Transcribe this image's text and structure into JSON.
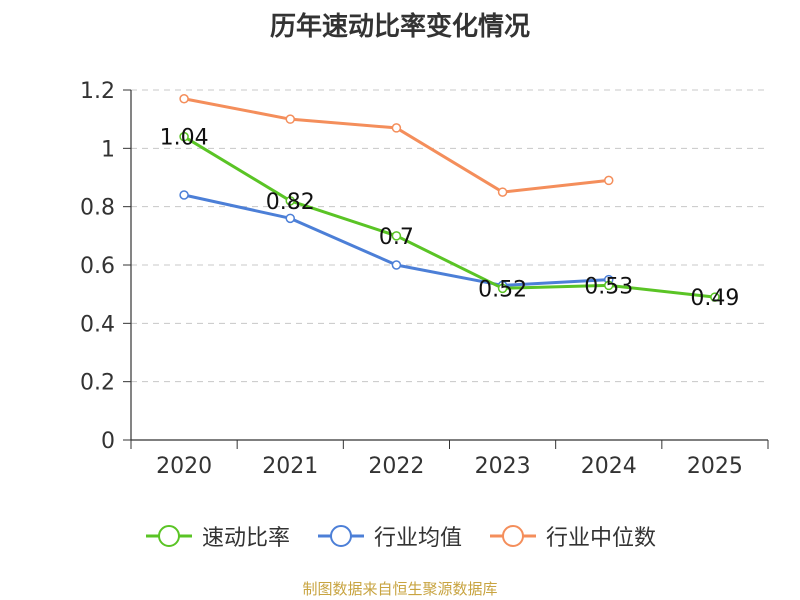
{
  "chart_data": {
    "type": "line",
    "title": "历年速动比率变化情况",
    "categories": [
      "2020",
      "2021",
      "2022",
      "2023",
      "2024",
      "2025"
    ],
    "ylim": [
      0,
      1.2
    ],
    "yticks": [
      "0",
      "0.2",
      "0.4",
      "0.6",
      "0.8",
      "1",
      "1.2"
    ],
    "grid": true,
    "legend_position": "bottom",
    "series": [
      {
        "name": "速动比率",
        "color": "#5ac425",
        "values": [
          1.04,
          0.82,
          0.7,
          0.52,
          0.53,
          0.49
        ],
        "labels": [
          "1.04",
          "0.82",
          "0.7",
          "0.52",
          "0.53",
          "0.49"
        ]
      },
      {
        "name": "行业均值",
        "color": "#4c7fd7",
        "values": [
          0.84,
          0.76,
          0.6,
          0.53,
          0.55,
          null
        ]
      },
      {
        "name": "行业中位数",
        "color": "#f48e5b",
        "values": [
          1.17,
          1.1,
          1.07,
          0.85,
          0.89,
          null
        ]
      }
    ]
  },
  "source_note": "制图数据来自恒生聚源数据库"
}
